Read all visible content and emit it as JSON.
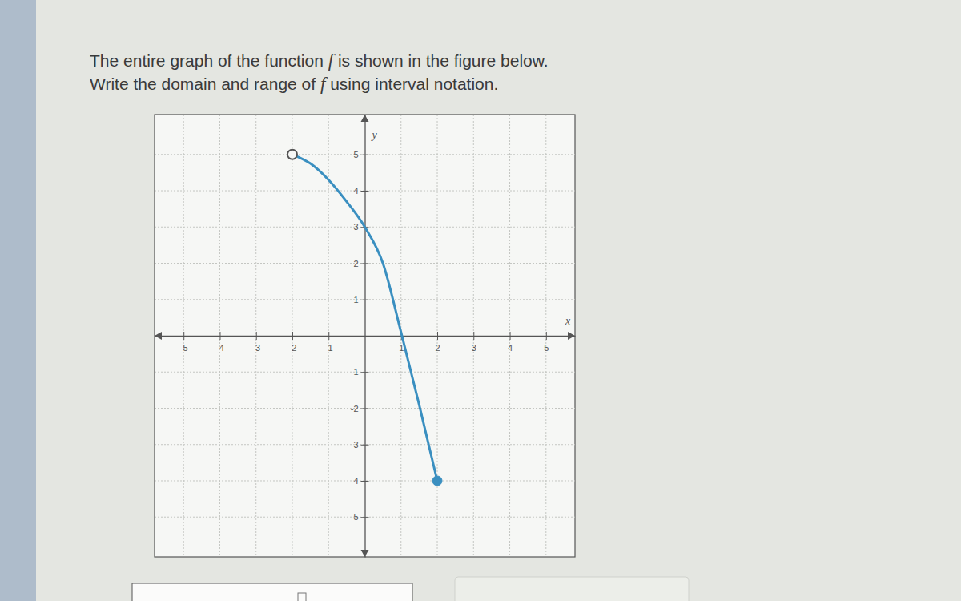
{
  "question": {
    "lines": [
      {
        "parts": [
          "The entire graph of the function ",
          "f",
          " is shown in the figure below."
        ]
      },
      {
        "parts": [
          "Write the domain and range of ",
          "f",
          " using interval notation."
        ]
      }
    ]
  },
  "chart_data": {
    "type": "line",
    "xlabel": "x",
    "ylabel": "y",
    "x": [
      -2,
      -1.5,
      -1,
      -0.5,
      0,
      0.5,
      1,
      1.5,
      2
    ],
    "values": [
      5,
      4.75,
      4.3,
      3.7,
      3,
      2,
      0.1,
      -1.9,
      -4
    ],
    "color": "#3a8fc0",
    "xlim": [
      -5.8,
      5.8
    ],
    "ylim": [
      -6.1,
      6.1
    ],
    "xticks": [
      -5,
      -4,
      -3,
      -2,
      -1,
      1,
      2,
      3,
      4,
      5
    ],
    "yticks": [
      -5,
      -4,
      -3,
      -2,
      -1,
      1,
      2,
      3,
      4,
      5
    ],
    "grid": true
  }
}
